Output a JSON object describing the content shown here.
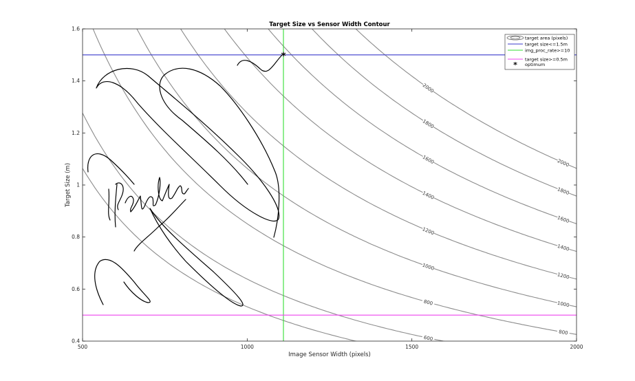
{
  "chart_data": {
    "type": "contour",
    "title": "Target Size vs Sensor Width Contour",
    "xlabel": "Image Sensor Width (pixels)",
    "ylabel": "Target Size (m)",
    "xlim": [
      500,
      2000
    ],
    "ylim": [
      0.4,
      1.6
    ],
    "x_ticks": [
      500,
      1000,
      1500,
      2000
    ],
    "y_ticks": [
      0.4,
      0.6,
      0.8,
      1.0,
      1.2,
      1.4,
      1.6
    ],
    "x_tick_labels": [
      "500",
      "1000",
      "1500",
      "2000"
    ],
    "y_tick_labels": [
      "0.4",
      "0.6",
      "0.8",
      "1",
      "1.2",
      "1.4",
      "1.6"
    ],
    "grid": false,
    "contour_levels": [
      500,
      600,
      800,
      1000,
      1200,
      1400,
      1600,
      1800,
      2000
    ],
    "contour_level_labels": [
      "500",
      "600",
      "800",
      "1000",
      "1200",
      "1400",
      "1600",
      "1800",
      "2000"
    ],
    "contour_function": "target area (pixels) ≈ k · x · y",
    "contour_color": "#8c8c8c",
    "constraints": [
      {
        "name": "target size<=1.5m",
        "orientation": "horizontal",
        "value": 1.5,
        "color": "#3a3acc"
      },
      {
        "name": "img_proc_rate>=10",
        "orientation": "vertical",
        "value": 1110,
        "color": "#33dd33"
      },
      {
        "name": "target size>=0.5m",
        "orientation": "horizontal",
        "value": 0.5,
        "color": "#ee44ee"
      }
    ],
    "optimum": {
      "x": 1110,
      "y": 1.5,
      "marker": "asterisk",
      "color": "#000000"
    },
    "legend": {
      "placement": "top-right",
      "entries": [
        {
          "label": "target area (pixels)",
          "kind": "contour"
        },
        {
          "label": "target size<=1.5m",
          "kind": "line",
          "color": "#3a3acc"
        },
        {
          "label": "img_proc_rate>=10",
          "kind": "line",
          "color": "#33dd33"
        },
        {
          "label": "target size>=0.5m",
          "kind": "line",
          "color": "#ee44ee"
        },
        {
          "label": "optimum",
          "kind": "marker"
        }
      ]
    },
    "annotations": [
      {
        "text": "feasible",
        "style": "handwritten",
        "region_note": "hand-drawn lines mark the feasible region"
      }
    ]
  }
}
